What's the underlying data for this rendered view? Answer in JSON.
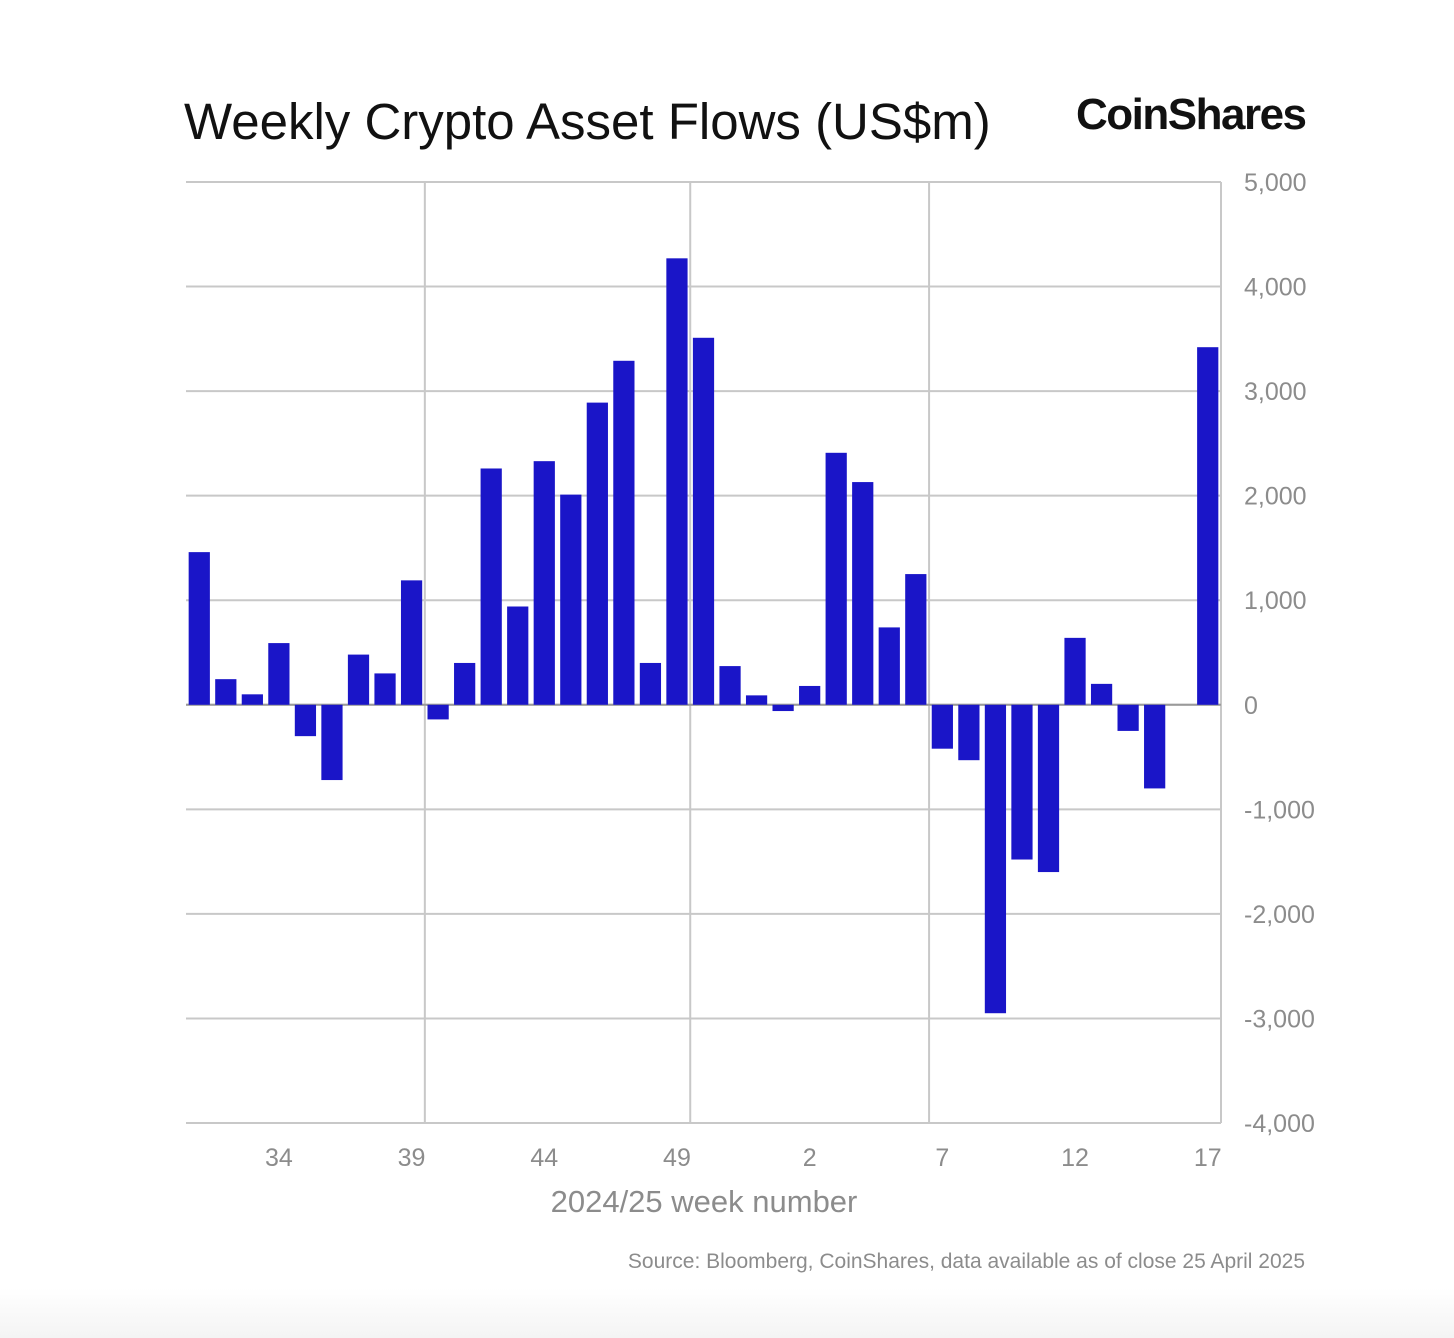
{
  "title": "Weekly Crypto Asset Flows (US$m)",
  "brand": "CoinShares",
  "source": "Source: Bloomberg, CoinShares, data available as of close 25 April 2025",
  "colors": {
    "bar": "#1a15c8",
    "grid": "#c8c8c8",
    "axis_text": "#8c8c8c"
  },
  "chart_data": {
    "type": "bar",
    "xlabel": "2024/25 week number",
    "ylabel": "",
    "ylim": [
      -4000,
      5000
    ],
    "yticks": [
      5000,
      4000,
      3000,
      2000,
      1000,
      0,
      -1000,
      -2000,
      -3000,
      -4000
    ],
    "ytick_labels": [
      "5,000",
      "4,000",
      "3,000",
      "2,000",
      "1,000",
      "0",
      "-1,000",
      "-2,000",
      "-3,000",
      "-4,000"
    ],
    "y_axis_position": "right",
    "grid": true,
    "categories": [
      "31",
      "32",
      "33",
      "34",
      "35",
      "36",
      "37",
      "38",
      "39",
      "40",
      "41",
      "42",
      "43",
      "44",
      "45",
      "46",
      "47",
      "48",
      "49",
      "50",
      "51",
      "52",
      "1",
      "2",
      "3",
      "4",
      "5",
      "6",
      "7",
      "8",
      "9",
      "10",
      "11",
      "12",
      "13",
      "14",
      "15",
      "16",
      "17"
    ],
    "xtick_labels": [
      "34",
      "39",
      "44",
      "49",
      "2",
      "7",
      "12",
      "17"
    ],
    "values": [
      1460,
      245,
      100,
      590,
      -300,
      -720,
      480,
      300,
      1190,
      -140,
      400,
      2260,
      940,
      2330,
      2010,
      2890,
      3290,
      400,
      4270,
      3510,
      370,
      90,
      -60,
      180,
      2410,
      2130,
      740,
      1250,
      -420,
      -530,
      -2950,
      -1480,
      -1600,
      640,
      200,
      -250,
      -800,
      0,
      3420
    ]
  }
}
